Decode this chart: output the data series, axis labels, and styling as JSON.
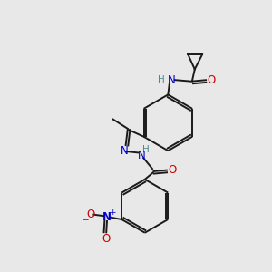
{
  "background_color": "#e8e8e8",
  "bond_color": "#1a1a1a",
  "nitrogen_color": "#0000cc",
  "oxygen_color": "#cc0000",
  "hydrogen_color": "#4a8a8a",
  "font_size": 7.5,
  "fig_width": 3.0,
  "fig_height": 3.0,
  "dpi": 100,
  "xlim": [
    0,
    10
  ],
  "ylim": [
    0,
    10
  ]
}
